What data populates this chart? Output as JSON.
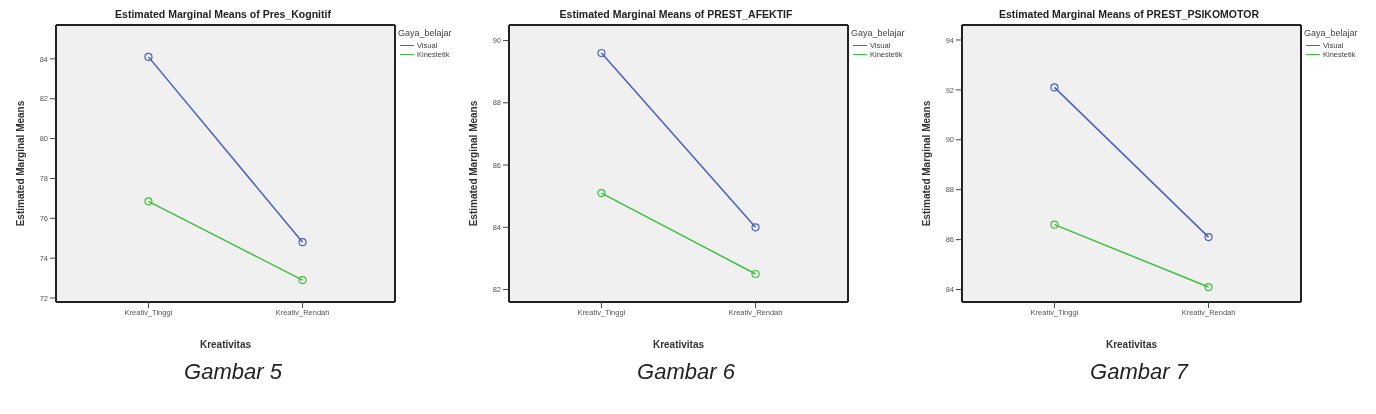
{
  "chart_data": [
    {
      "type": "line",
      "title": "Estimated Marginal Means of Pres_Kognitif",
      "xlabel": "Kreativitas",
      "ylabel": "Estimated Marginal Means",
      "categories": [
        "Kreativ_Tinggi",
        "Kreativ_Rendah"
      ],
      "series": [
        {
          "name": "Visual",
          "color": "#4a5fbf",
          "values": [
            84.1,
            74.8
          ]
        },
        {
          "name": "Kinestetik",
          "color": "#3fbf3f",
          "values": [
            76.85,
            72.9
          ]
        }
      ],
      "ylim": [
        71.8,
        85.7
      ],
      "yticks": [
        72,
        74,
        76,
        78,
        80,
        82,
        84
      ],
      "grid": false,
      "legend": "top right",
      "legend_title": "Gaya_belajar",
      "marker": "circle",
      "line_style": "solid",
      "annotations": [
        "Gambar 5"
      ]
    },
    {
      "type": "line",
      "title": "Estimated Marginal Means of PREST_AFEKTIF",
      "xlabel": "Kreativitas",
      "ylabel": "Estimated Marginal Means",
      "categories": [
        "Kreativ_Tinggi",
        "Kreativ_Rendah"
      ],
      "series": [
        {
          "name": "Visual",
          "color": "#4a5fbf",
          "values": [
            89.6,
            84.0
          ]
        },
        {
          "name": "Kinestetik",
          "color": "#3fbf3f",
          "values": [
            85.1,
            82.5
          ]
        }
      ],
      "ylim": [
        81.6,
        90.5
      ],
      "yticks": [
        82,
        84,
        86,
        88,
        90
      ],
      "grid": false,
      "legend": "top right",
      "legend_title": "Gaya_belajar",
      "marker": "circle",
      "line_style": "solid",
      "annotations": [
        "Gambar 6"
      ]
    },
    {
      "type": "line",
      "title": "Estimated Marginal Means of PREST_PSIKOMOTOR",
      "xlabel": "Kreativitas",
      "ylabel": "Estimated Marginal Means",
      "categories": [
        "Kreativ_Tinggi",
        "Kreativ_Rendah"
      ],
      "series": [
        {
          "name": "Visual",
          "color": "#4a5fbf",
          "values": [
            92.1,
            86.1
          ]
        },
        {
          "name": "Kinestetik",
          "color": "#3fbf3f",
          "values": [
            86.6,
            84.1
          ]
        }
      ],
      "ylim": [
        83.5,
        94.6
      ],
      "yticks": [
        84,
        86,
        88,
        90,
        92,
        94
      ],
      "grid": false,
      "legend": "top right",
      "legend_title": "Gaya_belajar",
      "marker": "circle",
      "line_style": "solid",
      "annotations": [
        "Gambar 7"
      ]
    }
  ]
}
